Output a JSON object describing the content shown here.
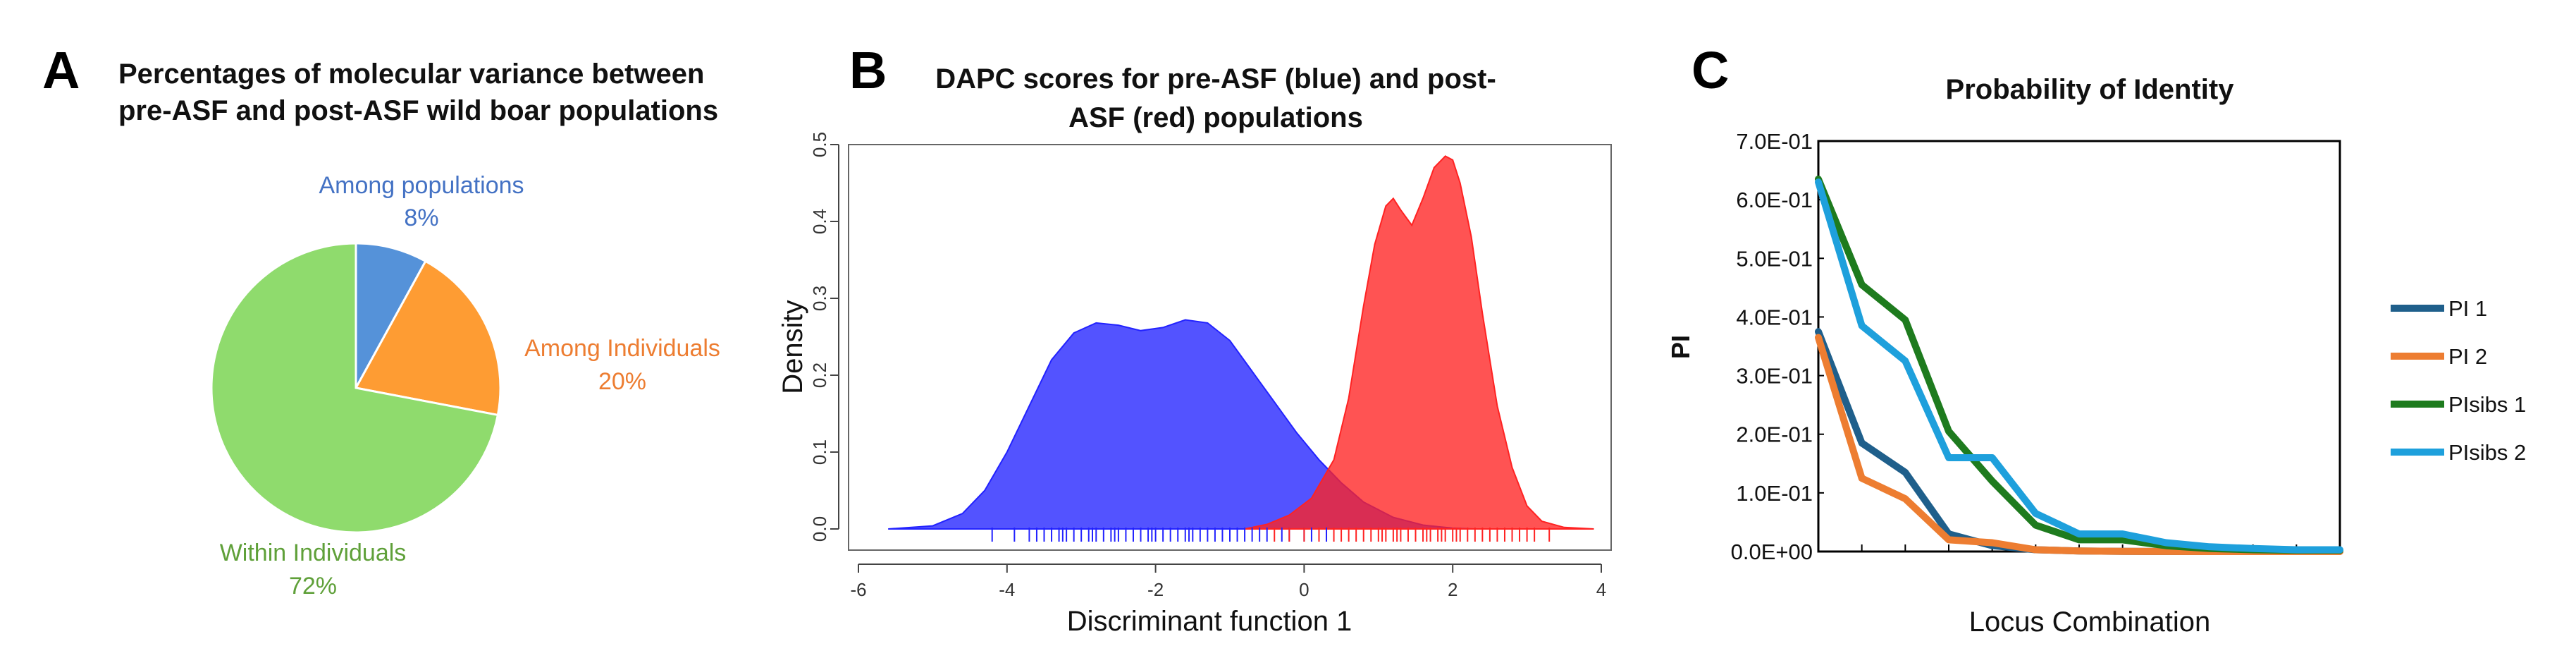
{
  "panels": {
    "a": {
      "letter": "A",
      "title_lines": [
        "Percentages of molecular variance between",
        "pre-ASF and post-ASF wild boar populations"
      ]
    },
    "b": {
      "letter": "B",
      "title_lines": [
        "DAPC  scores for pre-ASF (blue) and post-",
        "ASF (red) populations"
      ]
    },
    "c": {
      "letter": "C",
      "title": "Probability of Identity"
    }
  },
  "colors": {
    "among_populations": "#5592d9",
    "among_individuals": "#fe9c33",
    "within_individuals": "#8fdb6d",
    "among_populations_label": "#4472c4",
    "among_individuals_label": "#ed7d31",
    "within_individuals_label": "#5fa039",
    "pre_asf": "#2222ff",
    "post_asf": "#ff2222",
    "pi1": "#1f5f8b",
    "pi2": "#ed7d31",
    "pisibs1": "#1e7b1e",
    "pisibs2": "#1ea0dc"
  },
  "chart_data": [
    {
      "type": "pie",
      "title": "Percentages of molecular variance between pre-ASF and post-ASF wild boar populations",
      "slices": [
        {
          "name": "Among populations",
          "value": 8,
          "label": "8%"
        },
        {
          "name": "Among Individuals",
          "value": 20,
          "label": "20%"
        },
        {
          "name": "Within Individuals",
          "value": 72,
          "label": "72%"
        }
      ]
    },
    {
      "type": "area",
      "title": "DAPC  scores for pre-ASF (blue) and post-ASF (red) populations",
      "xlabel": "Discriminant function 1",
      "ylabel": "Density",
      "xlim": [
        -6,
        4
      ],
      "ylim": [
        0,
        0.5
      ],
      "xticks": [
        "-6",
        "-4",
        "-2",
        "0",
        "2",
        "4"
      ],
      "yticks": [
        "0.0",
        "0.1",
        "0.2",
        "0.3",
        "0.4",
        "0.5"
      ],
      "series": [
        {
          "x": [
            -5.6,
            -5.0,
            -4.6,
            -4.3,
            -4.0,
            -3.7,
            -3.4,
            -3.1,
            -2.8,
            -2.5,
            -2.2,
            -1.9,
            -1.6,
            -1.3,
            -1.0,
            -0.7,
            -0.4,
            -0.1,
            0.2,
            0.5,
            0.8,
            1.2,
            1.6,
            2.0,
            2.3
          ],
          "y": [
            0.0,
            0.004,
            0.02,
            0.05,
            0.1,
            0.16,
            0.22,
            0.255,
            0.268,
            0.265,
            0.258,
            0.262,
            0.272,
            0.268,
            0.245,
            0.205,
            0.165,
            0.125,
            0.09,
            0.06,
            0.035,
            0.015,
            0.005,
            0.001,
            0.0
          ],
          "rug": [
            -4.2,
            -3.9,
            -3.7,
            -3.6,
            -3.5,
            -3.4,
            -3.3,
            -3.25,
            -3.2,
            -3.1,
            -3.0,
            -2.9,
            -2.85,
            -2.8,
            -2.7,
            -2.6,
            -2.55,
            -2.5,
            -2.4,
            -2.3,
            -2.2,
            -2.1,
            -2.05,
            -2.0,
            -1.9,
            -1.8,
            -1.7,
            -1.6,
            -1.55,
            -1.5,
            -1.4,
            -1.3,
            -1.2,
            -1.1,
            -1.0,
            -0.9,
            -0.8,
            -0.7,
            -0.6,
            -0.5,
            -0.3,
            -0.2,
            0.0,
            0.1,
            0.3
          ]
        },
        {
          "x": [
            -0.8,
            -0.5,
            -0.2,
            0.1,
            0.4,
            0.6,
            0.8,
            0.95,
            1.1,
            1.2,
            1.3,
            1.45,
            1.6,
            1.75,
            1.9,
            2.0,
            2.1,
            2.25,
            2.4,
            2.6,
            2.8,
            3.0,
            3.2,
            3.5,
            3.9
          ],
          "y": [
            0.0,
            0.006,
            0.018,
            0.04,
            0.09,
            0.17,
            0.29,
            0.37,
            0.42,
            0.43,
            0.415,
            0.395,
            0.43,
            0.47,
            0.485,
            0.48,
            0.45,
            0.38,
            0.28,
            0.16,
            0.08,
            0.03,
            0.01,
            0.002,
            0.0
          ],
          "rug": [
            -0.4,
            -0.2,
            0.0,
            0.2,
            0.4,
            0.5,
            0.6,
            0.7,
            0.8,
            0.9,
            1.0,
            1.05,
            1.1,
            1.2,
            1.25,
            1.3,
            1.4,
            1.5,
            1.6,
            1.65,
            1.7,
            1.8,
            1.85,
            1.9,
            2.0,
            2.05,
            2.1,
            2.2,
            2.3,
            2.4,
            2.5,
            2.6,
            2.7,
            2.8,
            2.9,
            3.0,
            3.1,
            3.3
          ]
        }
      ]
    },
    {
      "type": "line",
      "title": "Probability of Identity",
      "xlabel": "Locus Combination",
      "ylabel": "PI",
      "x": [
        1,
        2,
        3,
        4,
        5,
        6,
        7,
        8,
        9,
        10,
        11,
        12,
        13
      ],
      "ylim": [
        0,
        0.7
      ],
      "yticks": [
        "0.0E+00",
        "1.0E-01",
        "2.0E-01",
        "3.0E-01",
        "4.0E-01",
        "5.0E-01",
        "6.0E-01",
        "7.0E-01"
      ],
      "legend_position": "right",
      "series": [
        {
          "name": "PI 1",
          "values": [
            0.375,
            0.185,
            0.135,
            0.03,
            0.01,
            0.003,
            0.001,
            0.0003,
            0.0001,
            5e-05,
            2e-05,
            1e-05,
            0.0
          ]
        },
        {
          "name": "PI 2",
          "values": [
            0.365,
            0.125,
            0.09,
            0.02,
            0.015,
            0.003,
            0.001,
            0.0003,
            0.0001,
            5e-05,
            2e-05,
            1e-05,
            0.0
          ]
        },
        {
          "name": "PIsibs 1",
          "values": [
            0.635,
            0.455,
            0.395,
            0.205,
            0.12,
            0.045,
            0.02,
            0.02,
            0.01,
            0.005,
            0.003,
            0.002,
            0.002
          ]
        },
        {
          "name": "PIsibs 2",
          "values": [
            0.63,
            0.385,
            0.325,
            0.16,
            0.16,
            0.065,
            0.03,
            0.03,
            0.015,
            0.008,
            0.005,
            0.003,
            0.003
          ]
        }
      ]
    }
  ]
}
